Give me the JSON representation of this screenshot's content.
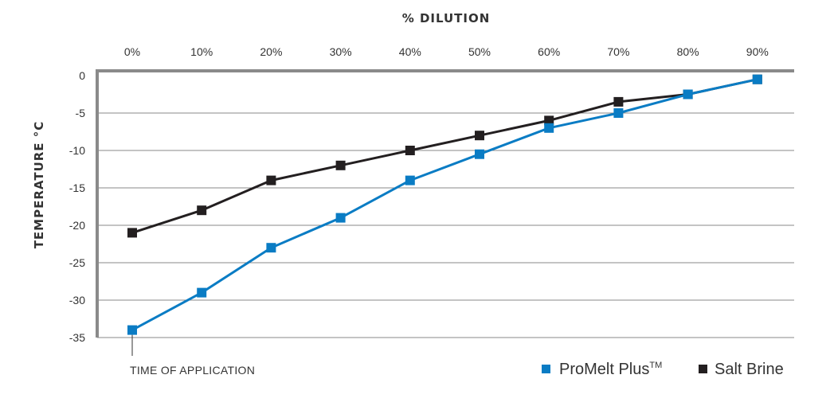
{
  "chart_data": {
    "type": "line",
    "x_title": "% DILUTION",
    "y_title": "TEMPERATURE °C",
    "categories": [
      "0%",
      "10%",
      "20%",
      "30%",
      "40%",
      "50%",
      "60%",
      "70%",
      "80%",
      "90%"
    ],
    "y_ticks": [
      "0",
      "-5",
      "-10",
      "-15",
      "-20",
      "-25",
      "-30",
      "-35"
    ],
    "ylim": [
      -35,
      0
    ],
    "x_axis_position": "top",
    "grid": "horizontal",
    "legend_position": "bottom-right",
    "annotation": "TIME OF APPLICATION",
    "series": [
      {
        "name": "ProMelt Plus",
        "name_superscript": "TM",
        "color": "#0a7cc4",
        "marker": "square",
        "values": [
          -34,
          -29,
          -23,
          -19,
          -14,
          -10.5,
          -7,
          -5,
          -2.5,
          -0.5
        ]
      },
      {
        "name": "Salt Brine",
        "color": "#231f20",
        "marker": "square",
        "values": [
          -21,
          -18,
          -14,
          -12,
          -10,
          -8,
          -6,
          -3.5,
          -2.5,
          -0.5
        ]
      }
    ]
  }
}
